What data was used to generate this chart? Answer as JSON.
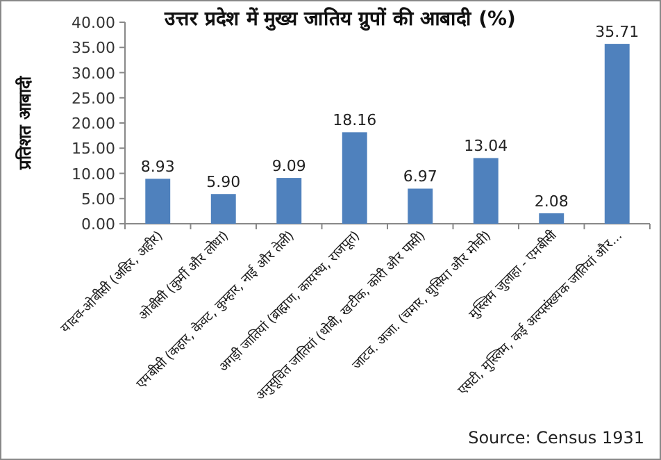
{
  "chart_data": {
    "type": "bar",
    "title": "उत्तर प्रदेश में मुख्य जातिय ग्रुपों की आबादी (%)",
    "ylabel": "प्रतिशत आबादी",
    "categories": [
      "यादव-ओबीसी (अहिर, अहीर)",
      "ओबीसी (कुर्मी और लोधा)",
      "एमबीसी (कहार, केवट, कुम्हार, नाई और तेली)",
      "अगड़ी जातियां (ब्राह्मण, कायस्थ, राजपूत)",
      "अनुसूचित जातियां (धोबी, खटीक, कोरी और पासी)",
      "जाटव. अजा. (चमार, धुसिया और मोची)",
      "मुस्लिम जुलाहा - एमबीसी",
      "एसटी, मुस्लिम, कई अल्पसंख्यक जातियां और..."
    ],
    "values": [
      8.93,
      5.9,
      9.09,
      18.16,
      6.97,
      13.04,
      2.08,
      35.71
    ],
    "value_labels": [
      "8.93",
      "5.90",
      "9.09",
      "18.16",
      "6.97",
      "13.04",
      "2.08",
      "35.71"
    ],
    "color": "#4f81bd",
    "ylim": [
      0,
      40
    ],
    "yticks": [
      {
        "value": 0,
        "label": "0.00"
      },
      {
        "value": 5,
        "label": "5.00"
      },
      {
        "value": 10,
        "label": "10.00"
      },
      {
        "value": 15,
        "label": "15.00"
      },
      {
        "value": 20,
        "label": "20.00"
      },
      {
        "value": 25,
        "label": "25.00"
      },
      {
        "value": 30,
        "label": "30.00"
      },
      {
        "value": 35,
        "label": "35.00"
      },
      {
        "value": 40,
        "label": "40.00"
      }
    ],
    "annotations": [
      "Source: Census 1931"
    ]
  }
}
